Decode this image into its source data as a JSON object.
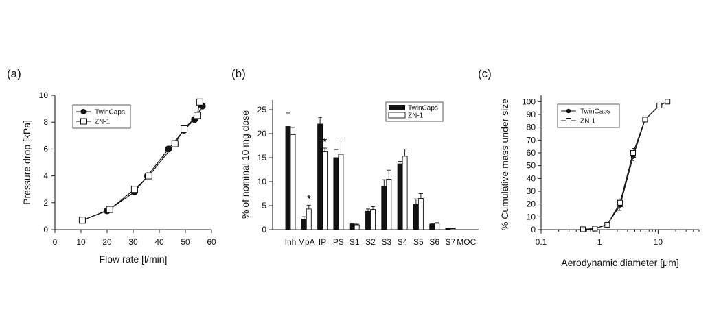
{
  "chart_data": [
    {
      "panel": "(a)",
      "type": "line",
      "xlabel": "Flow rate [l/min]",
      "ylabel": "Pressure drop [kPa]",
      "xlim": [
        0,
        60
      ],
      "ylim": [
        0,
        10
      ],
      "xticks": [
        0,
        10,
        20,
        30,
        40,
        50,
        60
      ],
      "yticks": [
        0,
        2,
        4,
        6,
        8,
        10
      ],
      "legend": "top-left",
      "grid": false,
      "series": [
        {
          "name": "TwinCaps",
          "marker": "filled-circle",
          "x": [
            10.5,
            20,
            30.5,
            35.5,
            43.5,
            49.5,
            53.5,
            56.5
          ],
          "y": [
            0.7,
            1.4,
            2.8,
            4.0,
            6.0,
            7.4,
            8.2,
            9.2
          ]
        },
        {
          "name": "ZN-1",
          "marker": "open-square",
          "x": [
            10.5,
            21,
            30.5,
            36,
            46,
            49.5,
            54.5,
            55.5
          ],
          "y": [
            0.7,
            1.5,
            3.0,
            4.0,
            6.4,
            7.5,
            8.5,
            9.5
          ]
        }
      ]
    },
    {
      "panel": "(b)",
      "type": "bar",
      "xlabel": "",
      "ylabel": "% of nominal 10 mg dose",
      "ylim": [
        0,
        27
      ],
      "yticks": [
        0,
        5,
        10,
        15,
        20,
        25
      ],
      "legend": "top-right",
      "categories": [
        "Inh",
        "MpA",
        "IP",
        "PS",
        "S1",
        "S2",
        "S3",
        "S4",
        "S5",
        "S6",
        "S7",
        "MOC"
      ],
      "significance_marker": "*",
      "significant_categories": [
        "MpA",
        "IP"
      ],
      "series": [
        {
          "name": "TwinCaps",
          "fill": "black",
          "values": [
            21.5,
            2.2,
            22.0,
            15.0,
            1.2,
            3.8,
            9.0,
            13.7,
            5.3,
            1.1,
            0.2,
            0
          ],
          "errors": [
            2.8,
            0.5,
            1.4,
            1.7,
            0.15,
            0.5,
            1.4,
            0.5,
            1.1,
            0.15,
            0.05,
            0
          ]
        },
        {
          "name": "ZN-1",
          "fill": "white",
          "values": [
            19.8,
            4.3,
            16.2,
            15.7,
            1.0,
            4.2,
            10.5,
            15.3,
            6.5,
            1.3,
            0.2,
            0
          ],
          "errors": [
            1.5,
            0.8,
            0.8,
            2.8,
            0.15,
            0.6,
            1.9,
            1.5,
            1.0,
            0.15,
            0.05,
            0
          ]
        }
      ]
    },
    {
      "panel": "(c)",
      "type": "line",
      "xlabel": "Aerodynamic diameter [μm]",
      "ylabel": "% Cumulative mass under size",
      "xscale": "log",
      "xlim": [
        0.1,
        50
      ],
      "ylim": [
        0,
        105
      ],
      "xtick_labels": [
        {
          "value": 0.1,
          "label": "0.1"
        },
        {
          "value": 1,
          "label": "1"
        },
        {
          "value": 10,
          "label": "10"
        }
      ],
      "yticks": [
        0,
        10,
        20,
        30,
        40,
        50,
        60,
        70,
        80,
        90,
        100
      ],
      "legend": "top-left",
      "series": [
        {
          "name": "TwinCaps",
          "marker": "filled-circle",
          "x": [
            0.52,
            0.83,
            1.35,
            2.24,
            3.74,
            5.98,
            10.5,
            14.5
          ],
          "y": [
            0.2,
            0.8,
            4.0,
            19.0,
            57.0,
            86.0,
            97.0,
            100.0
          ],
          "errors": [
            0,
            0,
            0.5,
            4.0,
            3.0,
            0.8,
            0.5,
            0
          ]
        },
        {
          "name": "ZN-1",
          "marker": "open-square",
          "x": [
            0.52,
            0.83,
            1.35,
            2.24,
            3.74,
            5.98,
            10.5,
            14.5
          ],
          "y": [
            0.3,
            0.8,
            3.8,
            21.0,
            60.0,
            86.0,
            97.0,
            100.0
          ],
          "errors": [
            0,
            0,
            0.5,
            3.0,
            3.5,
            0.8,
            0.5,
            0
          ]
        }
      ]
    }
  ]
}
